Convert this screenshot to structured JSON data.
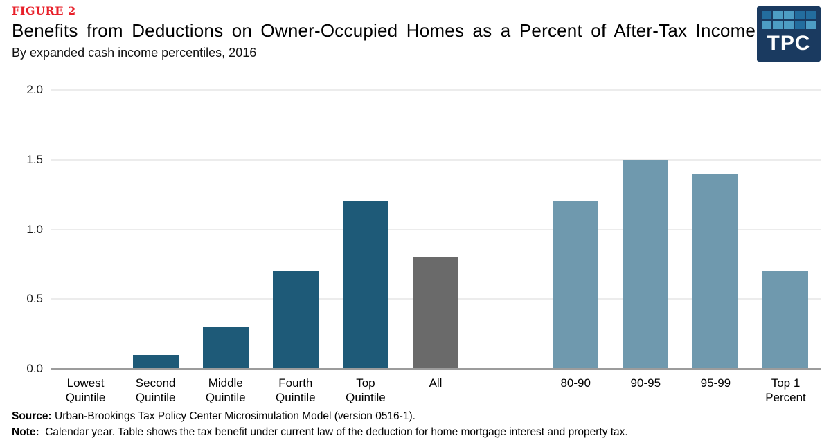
{
  "header": {
    "figure_label": "FIGURE 2",
    "title": "Benefits from Deductions on Owner-Occupied Homes as a Percent of After-Tax Income",
    "subtitle": "By expanded cash income percentiles, 2016"
  },
  "logo": {
    "text": "TPC",
    "bg_color": "#1a3a60",
    "tile_colors": {
      "medium": "#236d9e",
      "light": "#4d9dc4"
    },
    "tile_pattern": [
      [
        "medium",
        "light",
        "light",
        "medium",
        "medium"
      ],
      [
        "light",
        "light",
        "light",
        "medium",
        "light"
      ]
    ]
  },
  "chart_data": {
    "type": "bar",
    "title": "Benefits from Deductions on Owner-Occupied Homes as a Percent of After-Tax Income",
    "subtitle": "By expanded cash income percentiles, 2016",
    "xlabel": "",
    "ylabel": "",
    "ylim": [
      0,
      2.0
    ],
    "yticks": [
      2.0,
      1.5,
      1.0,
      0.5,
      0.0
    ],
    "ytick_labels": [
      "2.0",
      "1.5",
      "1.0",
      "0.5",
      "0.0"
    ],
    "grid": true,
    "legend": false,
    "categories": [
      "Lowest\nQuintile",
      "Second\nQuintile",
      "Middle\nQuintile",
      "Fourth\nQuintile",
      "Top\nQuintile",
      "All",
      "",
      "80-90",
      "90-95",
      "95-99",
      "Top 1\nPercent"
    ],
    "values": [
      0.0,
      0.1,
      0.3,
      0.7,
      1.2,
      0.8,
      null,
      1.2,
      1.5,
      1.4,
      0.7
    ],
    "roles": [
      "quintile",
      "quintile",
      "quintile",
      "quintile",
      "quintile",
      "all",
      "spacer",
      "percentile",
      "percentile",
      "percentile",
      "percentile"
    ],
    "colors": {
      "quintile": "#1e5a78",
      "all": "#6a6a6a",
      "percentile": "#6f99ae"
    },
    "axis_colors": {
      "gridline": "#ececec",
      "baseline": "#9c9c9c"
    }
  },
  "footer": {
    "source_label": "Source:",
    "source_text": " Urban-Brookings Tax Policy Center Microsimulation Model (version 0516-1).",
    "note_label": "Note:",
    "note_text": " Calendar year. Table shows the tax benefit under current law of the deduction for home mortgage interest and property tax."
  }
}
